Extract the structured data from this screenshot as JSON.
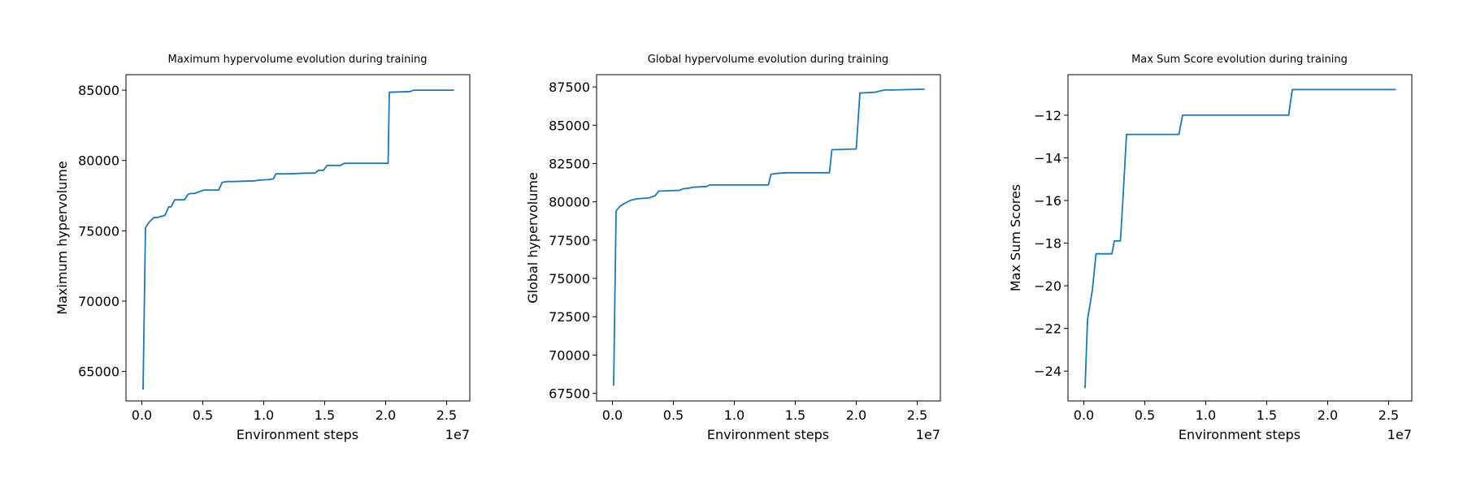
{
  "figure": {
    "background": "#ffffff",
    "line_color": "#1f77b4"
  },
  "chart_data": [
    {
      "type": "line",
      "title": "Maximum hypervolume evolution during training",
      "xlabel": "Environment steps",
      "ylabel": "Maximum hypervolume",
      "x_offset_label": "1e7",
      "xlim": [
        -1300000,
        26900000
      ],
      "ylim": [
        62900,
        86100
      ],
      "xticks": [
        0,
        5000000,
        10000000,
        15000000,
        20000000,
        25000000
      ],
      "xtick_labels": [
        "0.0",
        "0.5",
        "1.0",
        "1.5",
        "2.0",
        "2.5"
      ],
      "yticks": [
        65000,
        70000,
        75000,
        80000,
        85000
      ],
      "ytick_labels": [
        "65000",
        "70000",
        "75000",
        "80000",
        "85000"
      ],
      "grid": false,
      "series": [
        {
          "color": "#1f77b4",
          "x": [
            100000,
            300000,
            500000,
            700000,
            1000000,
            1300000,
            1500000,
            1900000,
            2200000,
            2400000,
            2700000,
            3000000,
            3500000,
            3800000,
            4000000,
            4300000,
            5100000,
            5300000,
            6300000,
            6600000,
            7000000,
            7500000,
            9300000,
            9600000,
            10500000,
            10800000,
            11000000,
            12000000,
            13500000,
            14200000,
            14500000,
            14900000,
            15200000,
            16300000,
            16600000,
            17500000,
            19000000,
            20200000,
            20300000,
            22000000,
            22300000,
            23000000,
            25600000
          ],
          "y": [
            63700,
            75200,
            75500,
            75700,
            75950,
            75950,
            76000,
            76100,
            76700,
            76700,
            77200,
            77200,
            77200,
            77600,
            77650,
            77650,
            77900,
            77900,
            77900,
            78450,
            78500,
            78500,
            78550,
            78600,
            78650,
            78700,
            79050,
            79050,
            79100,
            79100,
            79300,
            79300,
            79650,
            79650,
            79800,
            79800,
            79800,
            79800,
            84850,
            84900,
            85000,
            85000,
            85000
          ]
        }
      ]
    },
    {
      "type": "line",
      "title": "Global hypervolume evolution during training",
      "xlabel": "Environment steps",
      "ylabel": "Global hypervolume",
      "x_offset_label": "1e7",
      "xlim": [
        -1300000,
        26900000
      ],
      "ylim": [
        67000,
        88300
      ],
      "xticks": [
        0,
        5000000,
        10000000,
        15000000,
        20000000,
        25000000
      ],
      "xtick_labels": [
        "0.0",
        "0.5",
        "1.0",
        "1.5",
        "2.0",
        "2.5"
      ],
      "yticks": [
        67500,
        70000,
        72500,
        75000,
        77500,
        80000,
        82500,
        85000,
        87500
      ],
      "ytick_labels": [
        "67500",
        "70000",
        "72500",
        "75000",
        "77500",
        "80000",
        "82500",
        "85000",
        "87500"
      ],
      "grid": false,
      "series": [
        {
          "color": "#1f77b4",
          "x": [
            100000,
            300000,
            600000,
            1000000,
            1500000,
            2000000,
            3000000,
            3500000,
            3800000,
            4000000,
            5500000,
            5800000,
            6300000,
            6600000,
            7700000,
            8000000,
            12800000,
            13000000,
            13500000,
            14200000,
            17800000,
            18000000,
            20000000,
            20300000,
            21500000,
            22300000,
            23000000,
            25600000
          ],
          "y": [
            68000,
            79400,
            79700,
            79900,
            80100,
            80200,
            80250,
            80400,
            80700,
            80700,
            80750,
            80850,
            80900,
            80950,
            81000,
            81100,
            81100,
            81800,
            81850,
            81900,
            81900,
            83400,
            83450,
            87100,
            87150,
            87300,
            87300,
            87350
          ]
        }
      ]
    },
    {
      "type": "line",
      "title": "Max Sum Score evolution during training",
      "xlabel": "Environment steps",
      "ylabel": "Max Sum Scores",
      "x_offset_label": "1e7",
      "xlim": [
        -1300000,
        26900000
      ],
      "ylim": [
        -25.4,
        -10.1
      ],
      "xticks": [
        0,
        5000000,
        10000000,
        15000000,
        20000000,
        25000000
      ],
      "xtick_labels": [
        "0.0",
        "0.5",
        "1.0",
        "1.5",
        "2.0",
        "2.5"
      ],
      "yticks": [
        -24,
        -22,
        -20,
        -18,
        -16,
        -14,
        -12
      ],
      "ytick_labels": [
        "−24",
        "−22",
        "−20",
        "−18",
        "−16",
        "−14",
        "−12"
      ],
      "grid": false,
      "series": [
        {
          "color": "#1f77b4",
          "x": [
            100000,
            300000,
            700000,
            1000000,
            2300000,
            2500000,
            3000000,
            3200000,
            3500000,
            7800000,
            8100000,
            16800000,
            17100000,
            25600000
          ],
          "y": [
            -24.8,
            -21.6,
            -20.2,
            -18.5,
            -18.5,
            -17.9,
            -17.9,
            -16.0,
            -12.9,
            -12.9,
            -12.0,
            -12.0,
            -10.8,
            -10.8
          ]
        }
      ]
    }
  ]
}
